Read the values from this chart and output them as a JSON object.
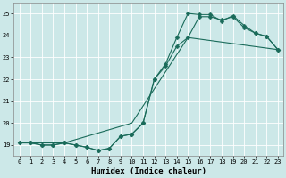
{
  "title": "",
  "xlabel": "Humidex (Indice chaleur)",
  "ylabel": "",
  "bg_color": "#cce8e8",
  "grid_color": "#ffffff",
  "line_color": "#1a6b5a",
  "xlim": [
    -0.5,
    23.5
  ],
  "ylim": [
    18.5,
    25.5
  ],
  "xticks": [
    0,
    1,
    2,
    3,
    4,
    5,
    6,
    7,
    8,
    9,
    10,
    11,
    12,
    13,
    14,
    15,
    16,
    17,
    18,
    19,
    20,
    21,
    22,
    23
  ],
  "yticks": [
    19,
    20,
    21,
    22,
    23,
    24,
    25
  ],
  "line1_x": [
    0,
    1,
    2,
    3,
    4,
    5,
    6,
    7,
    8,
    9,
    10,
    11,
    12,
    13,
    14,
    15,
    16,
    17,
    18,
    19,
    20,
    21,
    22,
    23
  ],
  "line1_y": [
    19.1,
    19.1,
    19.0,
    19.0,
    19.1,
    19.0,
    18.9,
    18.75,
    18.85,
    19.4,
    19.5,
    20.0,
    22.0,
    22.6,
    23.5,
    23.9,
    24.85,
    24.85,
    24.7,
    24.85,
    24.35,
    24.1,
    23.95,
    23.35
  ],
  "line2_x": [
    0,
    1,
    2,
    3,
    4,
    5,
    6,
    7,
    8,
    9,
    10,
    11,
    12,
    13,
    14,
    15,
    16,
    17,
    18,
    19,
    20,
    21,
    22,
    23
  ],
  "line2_y": [
    19.1,
    19.1,
    19.0,
    19.0,
    19.1,
    19.0,
    18.9,
    18.75,
    18.85,
    19.4,
    19.5,
    20.0,
    22.0,
    22.7,
    23.9,
    25.0,
    24.95,
    24.95,
    24.65,
    24.9,
    24.45,
    24.1,
    23.95,
    23.35
  ],
  "line3_x": [
    0,
    4,
    10,
    15,
    23
  ],
  "line3_y": [
    19.1,
    19.1,
    20.0,
    23.9,
    23.35
  ],
  "marker_size": 2.5,
  "line_width": 0.8,
  "xlabel_fontsize": 6.5,
  "tick_fontsize": 5.0
}
